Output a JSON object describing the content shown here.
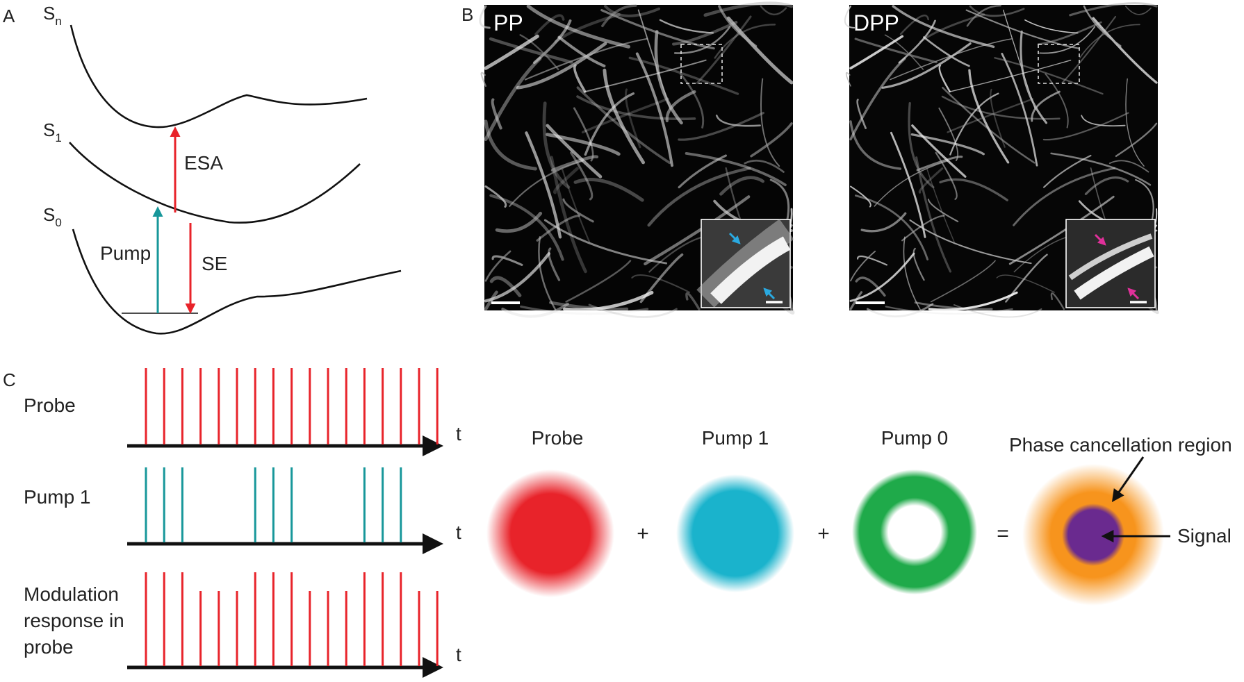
{
  "panel_letters": {
    "a": "A",
    "b": "B",
    "c": "C"
  },
  "energy_diagram": {
    "states": [
      {
        "symbol": "S",
        "subscript": "n"
      },
      {
        "symbol": "S",
        "subscript": "1"
      },
      {
        "symbol": "S",
        "subscript": "0"
      }
    ],
    "transitions": [
      {
        "label": "Pump",
        "color": "#17979a"
      },
      {
        "label": "ESA",
        "color": "#e8232a"
      },
      {
        "label": "SE",
        "color": "#e8232a"
      }
    ]
  },
  "microscopy": {
    "images": [
      {
        "label": "PP",
        "inset_arrow_color": "#2aa9e0"
      },
      {
        "label": "DPP",
        "inset_arrow_color": "#e0309a"
      }
    ]
  },
  "pulse_trains": {
    "axis_label": "t",
    "rows": [
      {
        "label_lines": [
          "Probe"
        ],
        "color": "#e8232a",
        "heights": [
          1,
          1,
          1,
          1,
          1,
          1,
          1,
          1,
          1,
          1,
          1,
          1,
          1,
          1,
          1,
          1,
          1
        ]
      },
      {
        "label_lines": [
          "Pump 1"
        ],
        "color": "#17979a",
        "heights": [
          1,
          1,
          1,
          0,
          0,
          0,
          1,
          1,
          1,
          0,
          0,
          0,
          1,
          1,
          1,
          0,
          0
        ]
      },
      {
        "label_lines": [
          "Modulation",
          "response in",
          "probe"
        ],
        "color": "#e8232a",
        "heights": [
          1,
          1,
          1,
          0.8,
          0.8,
          0.8,
          1,
          1,
          1,
          0.8,
          0.8,
          0.8,
          1,
          1,
          1,
          0.8,
          0.8
        ]
      }
    ]
  },
  "spots": {
    "items": [
      {
        "label": "Probe",
        "color": "#e8232a"
      },
      {
        "label": "Pump 1",
        "color": "#1ab3cc"
      },
      {
        "label": "Pump 0",
        "color": "#1faa4a"
      }
    ],
    "operators": [
      "+",
      "+",
      "="
    ],
    "result": {
      "outer_color": "#f7941d",
      "inner_color": "#6a2a8f"
    },
    "annotations": {
      "outer": "Phase cancellation region",
      "inner": "Signal"
    }
  }
}
